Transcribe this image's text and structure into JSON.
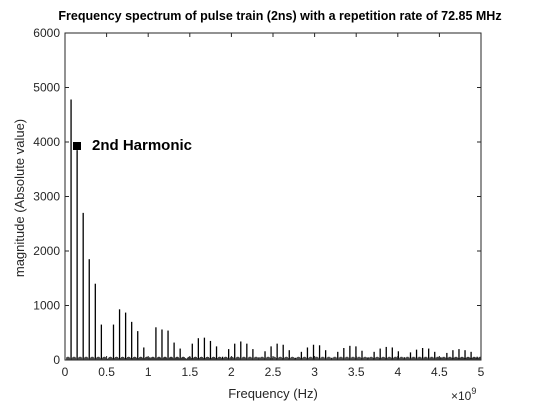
{
  "chart_data": {
    "type": "bar",
    "title": "Frequency spectrum of pulse train (2ns) with a repetition rate of 72.85 MHz",
    "xlabel": "Frequency (Hz)",
    "ylabel": "magnitude (Absolute value)",
    "x_exponent_label": "×10",
    "x_exponent_power": "9",
    "xlim": [
      0,
      5
    ],
    "ylim": [
      0,
      6000
    ],
    "xticks": [
      0,
      0.5,
      1,
      1.5,
      2,
      2.5,
      3,
      3.5,
      4,
      4.5,
      5
    ],
    "xtick_labels": [
      "0",
      "0.5",
      "1",
      "1.5",
      "2",
      "2.5",
      "3",
      "3.5",
      "4",
      "4.5",
      "5"
    ],
    "yticks": [
      0,
      1000,
      2000,
      3000,
      4000,
      5000,
      6000
    ],
    "ytick_labels": [
      "0",
      "1000",
      "2000",
      "3000",
      "4000",
      "5000",
      "6000"
    ],
    "grid": false,
    "color": "#000000",
    "series": [
      {
        "x": [
          0.0729,
          0.1457,
          0.2186,
          0.2914,
          0.3643,
          0.4371,
          0.51,
          0.5828,
          0.6557,
          0.7285,
          0.8014,
          0.8742,
          0.9471,
          1.0199,
          1.0928,
          1.1656,
          1.2385,
          1.3113,
          1.3842,
          1.457,
          1.5299,
          1.6027,
          1.6756,
          1.7484,
          1.8213,
          1.8941,
          1.967,
          2.0398,
          2.1127,
          2.1855,
          2.2584,
          2.3312,
          2.4041,
          2.4769,
          2.5498,
          2.6226,
          2.6955,
          2.7683,
          2.8412,
          2.914,
          2.9869,
          3.0597,
          3.1326,
          3.2054,
          3.2783,
          3.3511,
          3.424,
          3.4968,
          3.5697,
          3.6425,
          3.7154,
          3.7882,
          3.8611,
          3.9339,
          4.0068,
          4.0796,
          4.1525,
          4.2253,
          4.2982,
          4.371,
          4.4439,
          4.5167,
          4.5896,
          4.6624,
          4.7353,
          4.8081,
          4.881,
          4.9538
        ],
        "y": [
          4780,
          3850,
          2700,
          1850,
          1400,
          650,
          20,
          650,
          930,
          870,
          700,
          530,
          230,
          50,
          600,
          560,
          540,
          320,
          210,
          20,
          300,
          400,
          410,
          350,
          250,
          60,
          200,
          300,
          340,
          300,
          200,
          50,
          160,
          250,
          300,
          280,
          180,
          40,
          150,
          230,
          280,
          270,
          180,
          40,
          150,
          220,
          260,
          250,
          170,
          50,
          150,
          210,
          240,
          230,
          160,
          50,
          140,
          190,
          220,
          210,
          150,
          50,
          130,
          180,
          200,
          180,
          150,
          60
        ]
      }
    ]
  },
  "annotation": {
    "label": "2nd Harmonic"
  }
}
